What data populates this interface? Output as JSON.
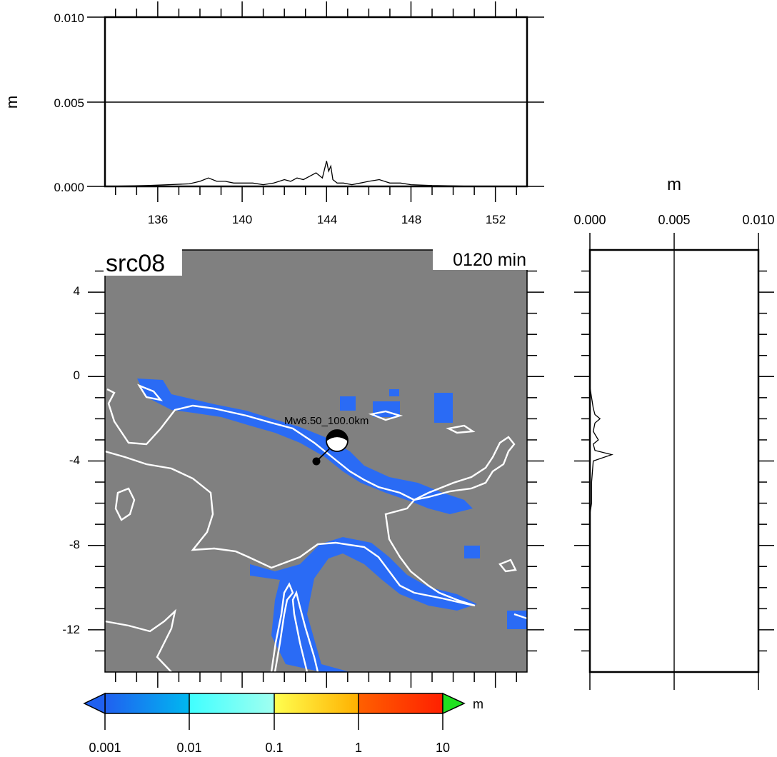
{
  "map": {
    "title": "src08",
    "time_label": "0120 min",
    "event_label": "Mw6.50_100.0km",
    "lon_ticks": [
      "136",
      "140",
      "144",
      "148",
      "152"
    ],
    "lat_ticks": [
      "4",
      "0",
      "-4",
      "-8",
      "-12"
    ],
    "colors": {
      "background": "#808080",
      "coastline": "#ffffff",
      "wave": "#2a6bf5"
    }
  },
  "top_profile": {
    "ylabel": "m",
    "y_ticks": [
      "0.000",
      "0.005",
      "0.010"
    ],
    "ylim": [
      0,
      0.01
    ]
  },
  "side_profile": {
    "xlabel": "m",
    "x_ticks": [
      "0.000",
      "0.005",
      "0.010"
    ],
    "xlim": [
      0,
      0.01
    ]
  },
  "colorbar": {
    "unit": "m",
    "tick_labels": [
      "0.001",
      "0.01",
      "0.1",
      "1",
      "10"
    ],
    "colors": [
      "#2060f0",
      "#00b8f0",
      "#40ffff",
      "#a0fff0",
      "#ffff50",
      "#ffb000",
      "#ff6000",
      "#ff2000",
      "#20e020"
    ]
  },
  "chart_data": {
    "type": "line",
    "series": [
      {
        "axis": "longitude",
        "x": [
          133.5,
          135.5,
          136.5,
          137.5,
          138.0,
          138.4,
          138.8,
          139.2,
          139.6,
          140.0,
          140.5,
          141.0,
          141.5,
          142.0,
          142.3,
          142.6,
          142.9,
          143.2,
          143.5,
          143.8,
          144.0,
          144.1,
          144.2,
          144.3,
          144.5,
          144.8,
          145.2,
          145.6,
          146.0,
          146.5,
          147.0,
          147.5,
          148.0,
          149.0,
          150.0,
          151.0,
          152.0,
          153.5
        ],
        "y": [
          0.0,
          5e-05,
          0.0001,
          0.00015,
          0.0003,
          0.0005,
          0.0003,
          0.0003,
          0.0002,
          0.0002,
          0.0002,
          0.0001,
          0.0002,
          0.0004,
          0.0003,
          0.0005,
          0.0004,
          0.0006,
          0.0008,
          0.0005,
          0.0015,
          0.0009,
          0.0012,
          0.0004,
          0.0002,
          0.0002,
          0.0001,
          0.0002,
          0.0003,
          0.0004,
          0.0002,
          0.0002,
          0.0001,
          5e-05,
          3e-05,
          0.0,
          0.0,
          0.0
        ]
      },
      {
        "axis": "latitude",
        "x": [
          0.0,
          0.0,
          0.0001,
          0.0002,
          0.0003,
          0.0006,
          0.0003,
          0.0002,
          0.0005,
          0.0002,
          0.0003,
          0.0013,
          0.0002,
          0.0001,
          0.0001,
          0.0,
          0.0
        ],
        "y": [
          6.0,
          -0.5,
          -1.0,
          -1.5,
          -1.8,
          -2.0,
          -2.2,
          -2.6,
          -3.0,
          -3.2,
          -3.5,
          -3.7,
          -4.0,
          -5.0,
          -6.0,
          -6.5,
          -14.0
        ]
      }
    ]
  }
}
